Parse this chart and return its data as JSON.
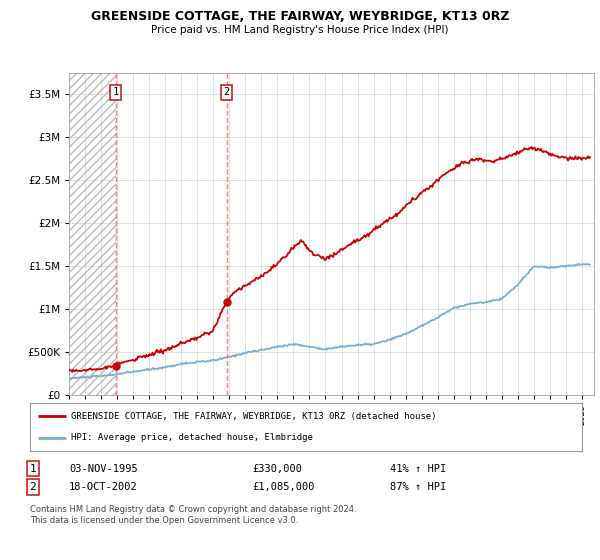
{
  "title": "GREENSIDE COTTAGE, THE FAIRWAY, WEYBRIDGE, KT13 0RZ",
  "subtitle": "Price paid vs. HM Land Registry's House Price Index (HPI)",
  "sale1_x": 1995.917,
  "sale1_price": 330000,
  "sale2_x": 2002.833,
  "sale2_price": 1085000,
  "hpi_line_color": "#7aadd4",
  "price_line_color": "#cc0000",
  "vline_color": "#ff6666",
  "background_color": "#ffffff",
  "grid_color": "#cccccc",
  "hatch_color": "#bbbbbb",
  "ylim": [
    0,
    3750000
  ],
  "yticks": [
    0,
    500000,
    1000000,
    1500000,
    2000000,
    2500000,
    3000000,
    3500000
  ],
  "ytick_labels": [
    "£0",
    "£500K",
    "£1M",
    "£1.5M",
    "£2M",
    "£2.5M",
    "£3M",
    "£3.5M"
  ],
  "xlim_start": 1993.0,
  "xlim_end": 2025.75,
  "legend_line1": "GREENSIDE COTTAGE, THE FAIRWAY, WEYBRIDGE, KT13 0RZ (detached house)",
  "legend_line2": "HPI: Average price, detached house, Elmbridge",
  "footer": "Contains HM Land Registry data © Crown copyright and database right 2024.\nThis data is licensed under the Open Government Licence v3.0."
}
